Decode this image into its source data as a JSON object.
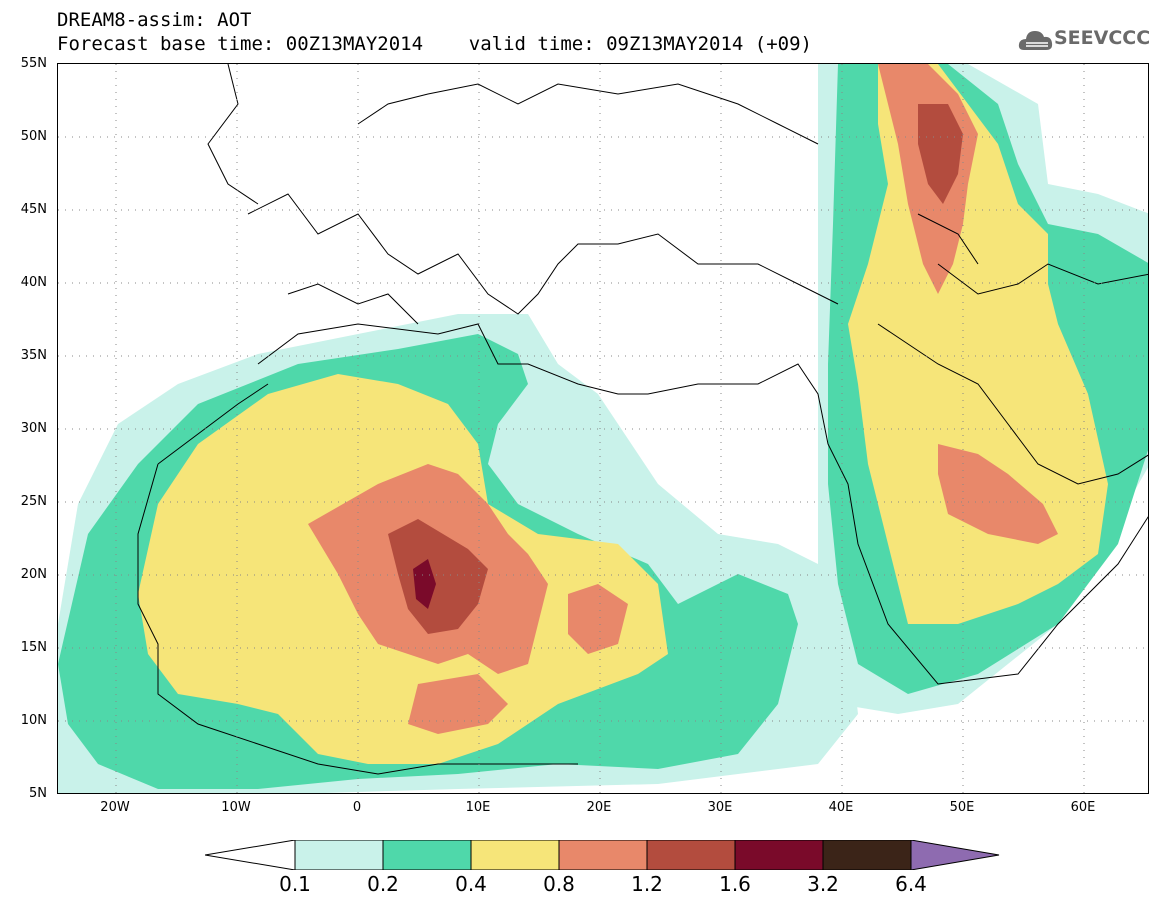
{
  "header": {
    "title_line1": "DREAM8-assim: AOT",
    "title_line2": "Forecast base time: 00Z13MAY2014    valid time: 09Z13MAY2014 (+09)",
    "logo_text": "SEEVCCC",
    "logo_icon": "cloud-icon"
  },
  "map": {
    "lat_labels": [
      "55N",
      "50N",
      "45N",
      "40N",
      "35N",
      "30N",
      "25N",
      "20N",
      "15N",
      "10N",
      "5N"
    ],
    "lon_labels": [
      "20W",
      "10W",
      "0",
      "10E",
      "20E",
      "30E",
      "40E",
      "50E",
      "60E"
    ],
    "lat_range": [
      5,
      55
    ],
    "lon_range": [
      -25,
      65
    ],
    "grid": "dotted"
  },
  "legend": {
    "labels": [
      "0.1",
      "0.2",
      "0.4",
      "0.8",
      "1.2",
      "1.6",
      "3.2",
      "6.4"
    ],
    "colors": [
      "#ffffff",
      "#c9f2ea",
      "#4fd8aa",
      "#f6e579",
      "#e8886a",
      "#b34c3e",
      "#7a0a2a",
      "#3b2418",
      "#8e6bb0"
    ]
  }
}
